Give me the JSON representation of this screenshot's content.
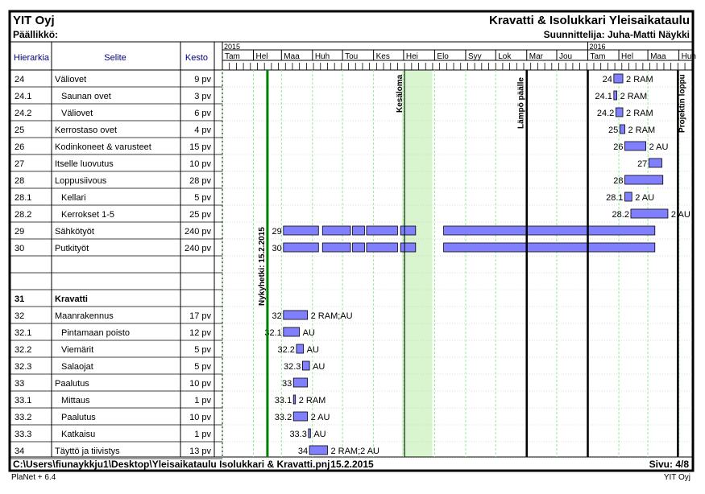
{
  "header": {
    "company": "YIT Oyj",
    "title": "Kravatti & Isolukkari Yleisaikataulu",
    "boss_label": "Päällikkö:",
    "planner": "Suunnittelija: Juha-Matti Näykki"
  },
  "columns": {
    "hierarchy": "Hierarkia",
    "description": "Selite",
    "duration": "Kesto"
  },
  "timeline": {
    "years": [
      "2015",
      "2016"
    ],
    "months": [
      "Tam",
      "Hel",
      "Maa",
      "Huh",
      "Tou",
      "Kes",
      "Hei",
      "Elo",
      "Syy",
      "Lok",
      "Mar",
      "Jou",
      "Tam",
      "Hel",
      "Maa",
      "Huh"
    ],
    "annotations": {
      "today": "Nykyhetki: 15.2.2015",
      "summer": "Kesäloma",
      "heat": "Lämpö päälle",
      "project_end": "Projektin loppu"
    }
  },
  "rows": [
    {
      "id": "24",
      "desc": "Väliovet",
      "dur": "9 pv",
      "indent": 0,
      "bold": false,
      "bars": [
        {
          "s": "2016-01-27",
          "e": "2016-02-05"
        }
      ],
      "label": "24",
      "res": "2 RAM"
    },
    {
      "id": "24.1",
      "desc": "Saunan ovet",
      "dur": "3 pv",
      "indent": 1,
      "bold": false,
      "bars": [
        {
          "s": "2016-01-27",
          "e": "2016-01-30"
        }
      ],
      "label": "24.1",
      "res": "2 RAM"
    },
    {
      "id": "24.2",
      "desc": "Väliovet",
      "dur": "6 pv",
      "indent": 1,
      "bold": false,
      "bars": [
        {
          "s": "2016-01-29",
          "e": "2016-02-05"
        }
      ],
      "label": "24.2",
      "res": "2 RAM"
    },
    {
      "id": "25",
      "desc": "Kerrostaso ovet",
      "dur": "4 pv",
      "indent": 0,
      "bold": false,
      "bars": [
        {
          "s": "2016-02-02",
          "e": "2016-02-07"
        }
      ],
      "label": "25",
      "res": "2 RAM"
    },
    {
      "id": "26",
      "desc": "Kodinkoneet & varusteet",
      "dur": "15 pv",
      "indent": 0,
      "bold": false,
      "bars": [
        {
          "s": "2016-02-07",
          "e": "2016-02-28"
        }
      ],
      "label": "26",
      "res": "2 AU"
    },
    {
      "id": "27",
      "desc": "Itselle luovutus",
      "dur": "10 pv",
      "indent": 0,
      "bold": false,
      "bars": [
        {
          "s": "2016-03-02",
          "e": "2016-03-15"
        }
      ],
      "label": "27",
      "res": ""
    },
    {
      "id": "28",
      "desc": "Loppusiivous",
      "dur": "28 pv",
      "indent": 0,
      "bold": false,
      "bars": [
        {
          "s": "2016-02-07",
          "e": "2016-03-16"
        }
      ],
      "label": "28",
      "res": ""
    },
    {
      "id": "28.1",
      "desc": "Kellari",
      "dur": "5 pv",
      "indent": 1,
      "bold": false,
      "bars": [
        {
          "s": "2016-02-07",
          "e": "2016-02-14"
        }
      ],
      "label": "28.1",
      "res": "2 AU"
    },
    {
      "id": "28.2",
      "desc": "Kerrokset 1-5",
      "dur": "25 pv",
      "indent": 1,
      "bold": false,
      "bars": [
        {
          "s": "2016-02-13",
          "e": "2016-03-21"
        }
      ],
      "label": "28.2",
      "res": "2 AU"
    },
    {
      "id": "29",
      "desc": "Sähkötyöt",
      "dur": "240 pv",
      "indent": 0,
      "bold": false,
      "bars": [
        {
          "s": "2015-03-03",
          "e": "2015-04-07"
        },
        {
          "s": "2015-04-11",
          "e": "2015-05-09"
        },
        {
          "s": "2015-05-11",
          "e": "2015-05-23"
        },
        {
          "s": "2015-05-25",
          "e": "2015-06-25"
        },
        {
          "s": "2015-06-28",
          "e": "2015-07-13"
        },
        {
          "s": "2015-08-10",
          "e": "2016-03-08"
        }
      ],
      "label": "29",
      "res": ""
    },
    {
      "id": "30",
      "desc": "Putkityöt",
      "dur": "240 pv",
      "indent": 0,
      "bold": false,
      "bars": [
        {
          "s": "2015-03-03",
          "e": "2015-04-07"
        },
        {
          "s": "2015-04-11",
          "e": "2015-05-09"
        },
        {
          "s": "2015-05-11",
          "e": "2015-05-23"
        },
        {
          "s": "2015-05-25",
          "e": "2015-06-25"
        },
        {
          "s": "2015-06-28",
          "e": "2015-07-13"
        },
        {
          "s": "2015-08-10",
          "e": "2016-03-08"
        }
      ],
      "label": "30",
      "res": ""
    },
    {
      "id": "",
      "desc": "",
      "dur": "",
      "indent": 0,
      "bold": false,
      "bars": [],
      "label": "",
      "res": ""
    },
    {
      "id": "",
      "desc": "",
      "dur": "",
      "indent": 0,
      "bold": false,
      "bars": [],
      "label": "",
      "res": ""
    },
    {
      "id": "31",
      "desc": "Kravatti",
      "dur": "",
      "indent": 0,
      "bold": true,
      "bars": [],
      "label": "",
      "res": ""
    },
    {
      "id": "32",
      "desc": "Maanrakennus",
      "dur": "17 pv",
      "indent": 0,
      "bold": false,
      "bars": [
        {
          "s": "2015-03-03",
          "e": "2015-03-27"
        }
      ],
      "label": "32",
      "res": "2 RAM;AU"
    },
    {
      "id": "32.1",
      "desc": "Pintamaan poisto",
      "dur": "12 pv",
      "indent": 1,
      "bold": false,
      "bars": [
        {
          "s": "2015-03-03",
          "e": "2015-03-19"
        }
      ],
      "label": "32.1",
      "res": "AU"
    },
    {
      "id": "32.2",
      "desc": "Viemärit",
      "dur": "5 pv",
      "indent": 1,
      "bold": false,
      "bars": [
        {
          "s": "2015-03-16",
          "e": "2015-03-23"
        }
      ],
      "label": "32.2",
      "res": "AU"
    },
    {
      "id": "32.3",
      "desc": "Salaojat",
      "dur": "5 pv",
      "indent": 1,
      "bold": false,
      "bars": [
        {
          "s": "2015-03-22",
          "e": "2015-03-29"
        }
      ],
      "label": "32.3",
      "res": "AU"
    },
    {
      "id": "33",
      "desc": "Paalutus",
      "dur": "10 pv",
      "indent": 0,
      "bold": false,
      "bars": [
        {
          "s": "2015-03-13",
          "e": "2015-03-27"
        }
      ],
      "label": "33",
      "res": ""
    },
    {
      "id": "33.1",
      "desc": "Mittaus",
      "dur": "1 pv",
      "indent": 1,
      "bold": false,
      "bars": [
        {
          "s": "2015-03-13",
          "e": "2015-03-15"
        }
      ],
      "label": "33.1",
      "res": "2 RAM"
    },
    {
      "id": "33.2",
      "desc": "Paalutus",
      "dur": "10 pv",
      "indent": 1,
      "bold": false,
      "bars": [
        {
          "s": "2015-03-13",
          "e": "2015-03-27"
        }
      ],
      "label": "33.2",
      "res": "2 AU"
    },
    {
      "id": "33.3",
      "desc": "Katkaisu",
      "dur": "1 pv",
      "indent": 1,
      "bold": false,
      "bars": [
        {
          "s": "2015-03-28",
          "e": "2015-03-30"
        }
      ],
      "label": "33.3",
      "res": "AU"
    },
    {
      "id": "34",
      "desc": "Täyttö ja tiivistys",
      "dur": "13 pv",
      "indent": 0,
      "bold": false,
      "bars": [
        {
          "s": "2015-03-29",
          "e": "2015-04-16"
        }
      ],
      "label": "34",
      "res": "2 RAM;2 AU"
    }
  ],
  "footer": {
    "path": "C:\\Users\\fiunaykkju1\\Desktop\\Yleisaikataulu Isolukkari & Kravatti.pnj",
    "date": "15.2.2015",
    "page": "Sivu: 4/8",
    "software": "PlaNet + 6.4",
    "company": "YIT Oyj"
  },
  "colors": {
    "bar_fill": "#8080ff",
    "bar_stroke": "#000000",
    "today_line": "#008000",
    "grid_green": "#90ee90",
    "summer_fill": "#d8f5d0"
  }
}
